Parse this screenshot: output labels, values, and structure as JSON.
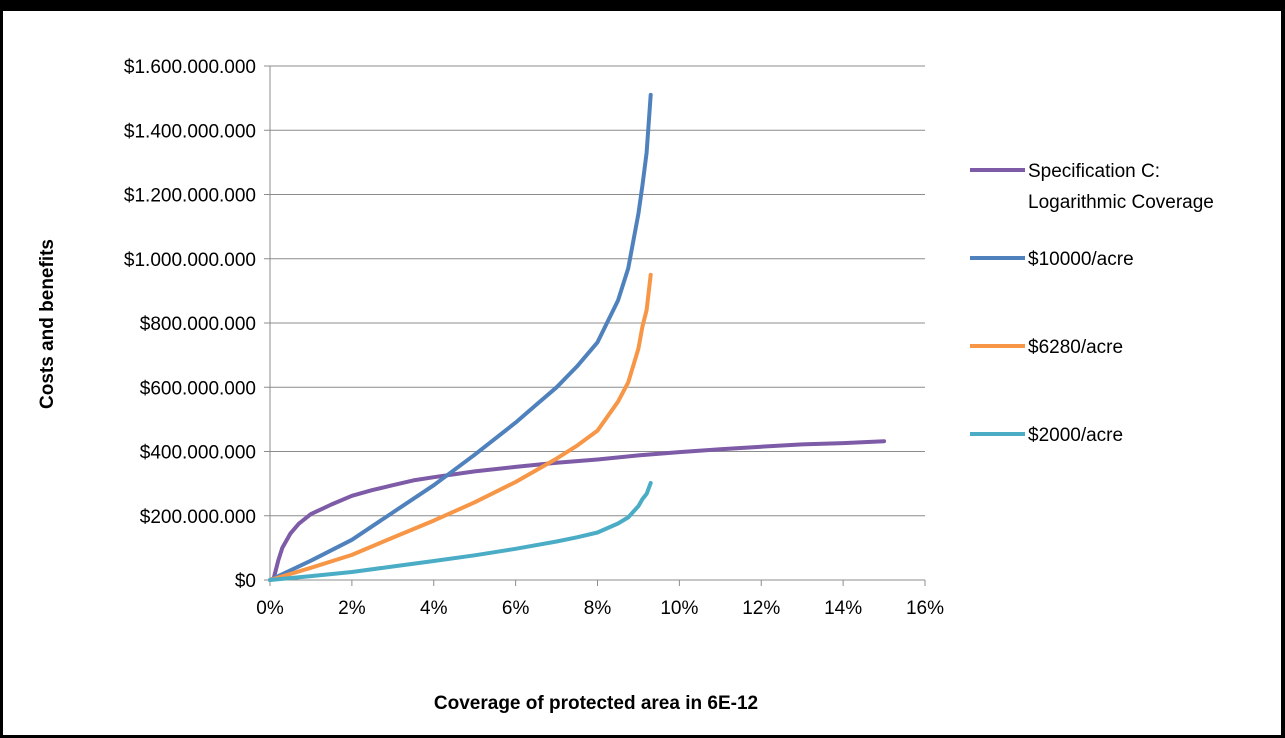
{
  "chart_data": {
    "type": "line",
    "title": "",
    "xlabel": "Coverage of protected area in 6E-12",
    "ylabel": "Costs and benefits",
    "xlim": [
      0,
      0.16
    ],
    "ylim": [
      0,
      1600000000
    ],
    "x_ticks": [
      0,
      0.02,
      0.04,
      0.06,
      0.08,
      0.1,
      0.12,
      0.14,
      0.16
    ],
    "x_tick_labels": [
      "0%",
      "2%",
      "4%",
      "6%",
      "8%",
      "10%",
      "12%",
      "14%",
      "16%"
    ],
    "y_ticks": [
      0,
      200000000,
      400000000,
      600000000,
      800000000,
      1000000000,
      1200000000,
      1400000000,
      1600000000
    ],
    "y_tick_labels": [
      "$0",
      "$200.000.000",
      "$400.000.000",
      "$600.000.000",
      "$800.000.000",
      "$1.000.000.000",
      "$1.200.000.000",
      "$1.400.000.000",
      "$1.600.000.000"
    ],
    "grid": "horizontal",
    "legend_position": "right",
    "series": [
      {
        "name": "Specification C: Logarithmic Coverage",
        "legend_lines": [
          "Specification C:",
          "Logarithmic Coverage"
        ],
        "color": "#7D5BA6",
        "x": [
          0.001,
          0.002,
          0.003,
          0.005,
          0.007,
          0.01,
          0.015,
          0.02,
          0.025,
          0.03,
          0.035,
          0.04,
          0.05,
          0.06,
          0.07,
          0.08,
          0.09,
          0.1,
          0.11,
          0.12,
          0.13,
          0.14,
          0.15
        ],
        "y": [
          10000000,
          60000000,
          100000000,
          145000000,
          175000000,
          205000000,
          235000000,
          262000000,
          280000000,
          295000000,
          310000000,
          320000000,
          338000000,
          352000000,
          365000000,
          375000000,
          388000000,
          398000000,
          407000000,
          415000000,
          422000000,
          426000000,
          432000000
        ]
      },
      {
        "name": "$10000/acre",
        "legend_lines": [
          "$10000/acre"
        ],
        "color": "#4F81BD",
        "x": [
          0.0,
          0.01,
          0.02,
          0.03,
          0.04,
          0.05,
          0.06,
          0.065,
          0.07,
          0.075,
          0.08,
          0.085,
          0.0875,
          0.09,
          0.091,
          0.092,
          0.093
        ],
        "y": [
          0,
          60000000,
          125000000,
          210000000,
          295000000,
          390000000,
          490000000,
          545000000,
          600000000,
          665000000,
          740000000,
          870000000,
          970000000,
          1140000000,
          1230000000,
          1330000000,
          1510000000
        ]
      },
      {
        "name": "$6280/acre",
        "legend_lines": [
          "$6280/acre"
        ],
        "color": "#F79646",
        "x": [
          0.0,
          0.01,
          0.02,
          0.03,
          0.04,
          0.05,
          0.06,
          0.07,
          0.075,
          0.08,
          0.085,
          0.0875,
          0.09,
          0.091,
          0.092,
          0.093
        ],
        "y": [
          0,
          38000000,
          78000000,
          132000000,
          185000000,
          242000000,
          305000000,
          378000000,
          418000000,
          465000000,
          555000000,
          615000000,
          720000000,
          790000000,
          840000000,
          950000000
        ]
      },
      {
        "name": "$2000/acre",
        "legend_lines": [
          "$2000/acre"
        ],
        "color": "#4BACC6",
        "x": [
          0.0,
          0.01,
          0.02,
          0.03,
          0.04,
          0.05,
          0.06,
          0.07,
          0.075,
          0.08,
          0.085,
          0.0875,
          0.09,
          0.091,
          0.092,
          0.093
        ],
        "y": [
          0,
          12000000,
          25000000,
          42000000,
          59000000,
          77000000,
          97000000,
          120000000,
          133000000,
          148000000,
          176000000,
          195000000,
          230000000,
          252000000,
          268000000,
          302000000
        ]
      }
    ]
  }
}
